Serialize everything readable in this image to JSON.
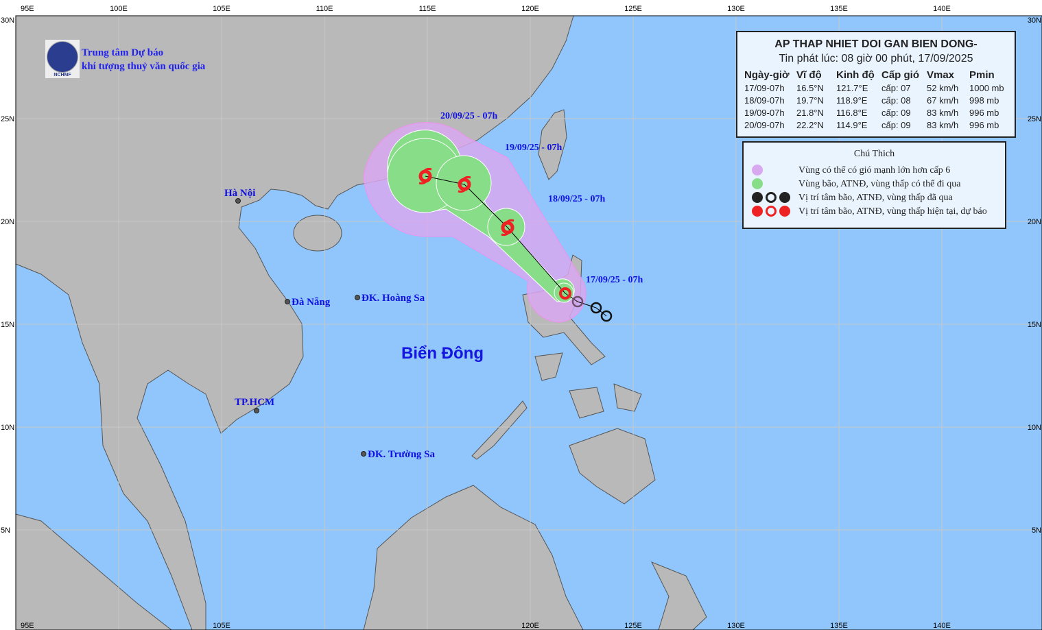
{
  "header": {
    "org_line1": "Trung tâm Dự báo",
    "org_line2": "khí tượng thuỷ văn quốc gia",
    "logo_text": "NCHMF"
  },
  "info_box": {
    "title": "AP THAP NHIET DOI GAN BIEN DONG-",
    "issued": "Tin phát lúc: 08 giờ 00 phút, 17/09/2025",
    "columns": [
      "Ngày-giờ",
      "Vĩ độ",
      "Kinh độ",
      "Cấp gió",
      "Vmax",
      "Pmin"
    ],
    "rows": [
      [
        "17/09-07h",
        "16.5°N",
        "121.7°E",
        "cấp: 07",
        "52 km/h",
        "1000 mb"
      ],
      [
        "18/09-07h",
        "19.7°N",
        "118.9°E",
        "cấp: 08",
        "67 km/h",
        "998 mb"
      ],
      [
        "19/09-07h",
        "21.8°N",
        "116.8°E",
        "cấp: 09",
        "83 km/h",
        "996 mb"
      ],
      [
        "20/09-07h",
        "22.2°N",
        "114.9°E",
        "cấp: 09",
        "83 km/h",
        "996 mb"
      ]
    ]
  },
  "legend": {
    "title": "Chú Thich",
    "items": [
      {
        "label": "Vùng có thể có gió mạnh lớn hơn cấp 6",
        "color": "#d8a8f0"
      },
      {
        "label": "Vùng bão, ATNĐ, vùng thấp có thể đi qua",
        "color": "#88dd88"
      },
      {
        "label": "Vị trí tâm bão, ATNĐ, vùng thấp đã qua",
        "color": "#222222"
      },
      {
        "label": "Vị trí tâm bão, ATNĐ, vùng thấp hiện tại, dự báo",
        "color": "#ee2222"
      }
    ]
  },
  "axes": {
    "top_lon": [
      "95E",
      "100E",
      "105E",
      "110E",
      "115E",
      "120E",
      "125E",
      "130E",
      "135E",
      "140E"
    ],
    "bottom_lon": [
      "95E",
      "105E",
      "120E",
      "125E",
      "130E",
      "135E",
      "140E"
    ],
    "lat": [
      "30N",
      "25N",
      "20N",
      "15N",
      "10N",
      "5N"
    ]
  },
  "places": [
    {
      "name": "Hà Nội",
      "lat": 21.0,
      "lon": 105.8
    },
    {
      "name": "Đà Nẵng",
      "lat": 16.1,
      "lon": 108.2
    },
    {
      "name": "ĐK. Hoàng Sa",
      "lat": 16.3,
      "lon": 111.6
    },
    {
      "name": "TP.HCM",
      "lat": 10.8,
      "lon": 106.7
    },
    {
      "name": "ĐK. Trường Sa",
      "lat": 8.7,
      "lon": 111.9
    }
  ],
  "sea_label": "Biển Đông",
  "track": {
    "forecast": [
      {
        "label": "17/09/25 - 07h",
        "lat": 16.5,
        "lon": 121.7
      },
      {
        "label": "18/09/25 - 07h",
        "lat": 19.7,
        "lon": 118.9
      },
      {
        "label": "19/09/25 - 07h",
        "lat": 21.8,
        "lon": 116.8
      },
      {
        "label": "20/09/25 - 07h",
        "lat": 22.2,
        "lon": 114.9
      }
    ],
    "past": [
      {
        "lat": 16.1,
        "lon": 122.3
      },
      {
        "lat": 15.8,
        "lon": 123.2
      },
      {
        "lat": 15.4,
        "lon": 123.7
      }
    ]
  },
  "colors": {
    "sea": "#90c6fc",
    "land": "#b9b9b9",
    "wind_zone": "#d8a8f0",
    "storm_zone": "#88dd88",
    "current": "#ee2222",
    "past": "#222222",
    "label": "#1010e0"
  }
}
